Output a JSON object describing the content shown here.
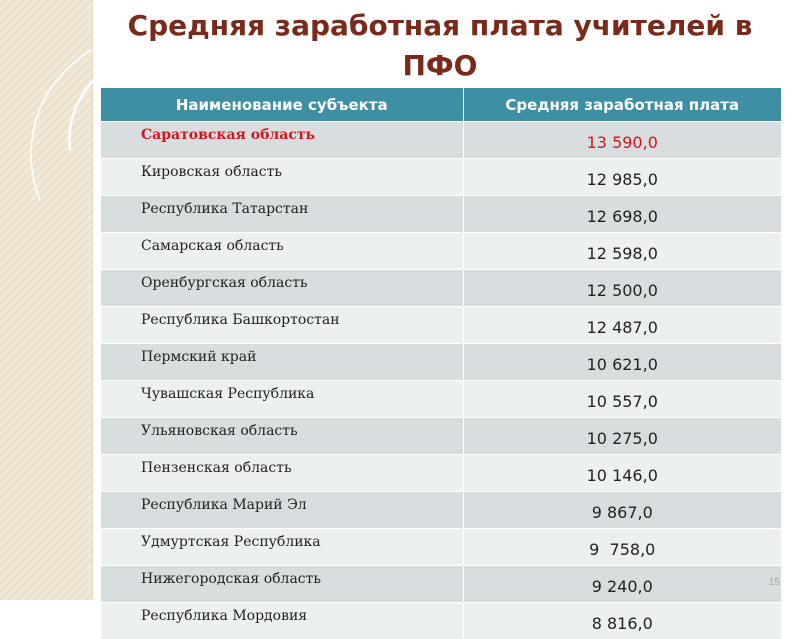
{
  "title": "Средняя заработная плата учителей в ПФО",
  "table": {
    "headers": [
      "Наименование субъекта",
      "Средняя заработная плата"
    ],
    "rows": [
      {
        "region": "Саратовская область",
        "value": "13 590,0"
      },
      {
        "region": "Кировская область",
        "value": "12 985,0"
      },
      {
        "region": "Республика Татарстан",
        "value": "12 698,0"
      },
      {
        "region": "Самарская область",
        "value": "12 598,0"
      },
      {
        "region": "Оренбургская область",
        "value": "12 500,0"
      },
      {
        "region": "Республика Башкортостан",
        "value": "12 487,0"
      },
      {
        "region": "Пермский край",
        "value": "10 621,0"
      },
      {
        "region": "Чувашская Республика",
        "value": "10 557,0"
      },
      {
        "region": "Ульяновская область",
        "value": "10 275,0"
      },
      {
        "region": "Пензенская область",
        "value": "10 146,0"
      },
      {
        "region": "Республика Марий Эл",
        "value": "9 867,0"
      },
      {
        "region": "Удмуртская Республика",
        "value": "9  758,0"
      },
      {
        "region": "Нижегородская область",
        "value": "9 240,0"
      },
      {
        "region": "Республика Мордовия",
        "value": "8 816,0"
      }
    ]
  },
  "colors": {
    "header_bg": "#3e8fa3",
    "highlight": "#d2151c",
    "title": "#7a2a1a"
  },
  "page_number": "15"
}
